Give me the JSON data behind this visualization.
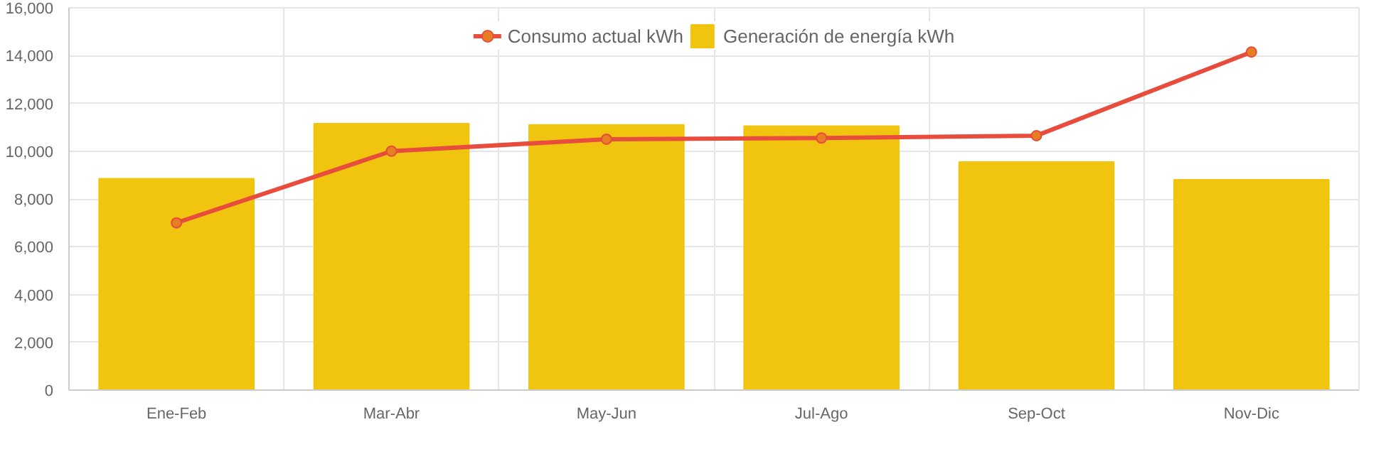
{
  "chart_data": {
    "type": "bar",
    "categories": [
      "Ene-Feb",
      "Mar-Abr",
      "May-Jun",
      "Jul-Ago",
      "Sep-Oct",
      "Nov-Dic"
    ],
    "series": [
      {
        "name": "Consumo actual kWh",
        "type": "line",
        "color": "#e74c3c",
        "values": [
          7000,
          10000,
          10500,
          10550,
          10650,
          14150
        ]
      },
      {
        "name": "Generación de energía kWh",
        "color": "#f1c40f",
        "values": [
          8850,
          11150,
          11100,
          11050,
          9550,
          8800
        ]
      }
    ],
    "ylim": [
      0,
      16000
    ],
    "yticks": [
      {
        "value": 0,
        "label": "0"
      },
      {
        "value": 2000,
        "label": "2,000"
      },
      {
        "value": 4000,
        "label": "4,000"
      },
      {
        "value": 6000,
        "label": "6,000"
      },
      {
        "value": 8000,
        "label": "8,000"
      },
      {
        "value": 10000,
        "label": "10,000"
      },
      {
        "value": 12000,
        "label": "12,000"
      },
      {
        "value": 14000,
        "label": "14,000"
      },
      {
        "value": 16000,
        "label": "16,000"
      }
    ],
    "grid": true,
    "legend": "top",
    "marker": "circle",
    "line_style": "solid"
  }
}
